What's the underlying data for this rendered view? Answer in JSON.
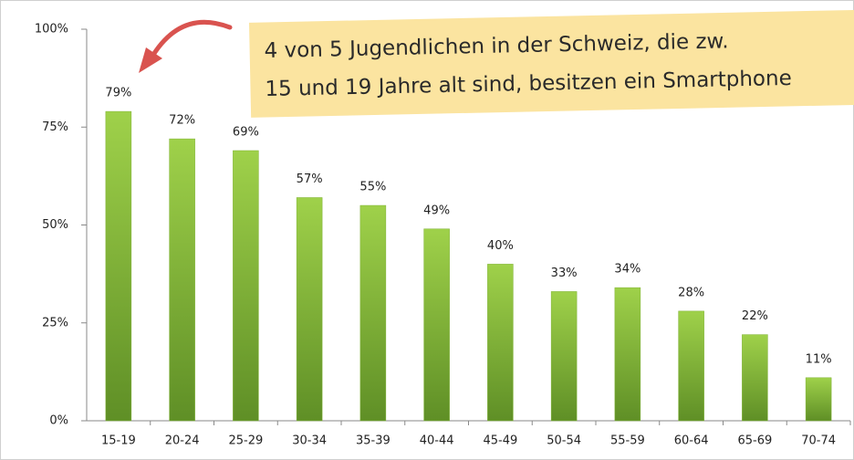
{
  "chart_data": {
    "type": "bar",
    "annotation": [
      "4 von 5 Jugendlichen in der Schweiz, die zw.",
      "15 und 19 Jahre alt sind, besitzen ein Smartphone"
    ],
    "categories": [
      "15-19",
      "20-24",
      "25-29",
      "30-34",
      "35-39",
      "40-44",
      "45-49",
      "50-54",
      "55-59",
      "60-64",
      "65-69",
      "70-74"
    ],
    "values": [
      79,
      72,
      69,
      57,
      55,
      49,
      40,
      33,
      34,
      28,
      22,
      11
    ],
    "value_labels": [
      "79%",
      "72%",
      "69%",
      "57%",
      "55%",
      "49%",
      "40%",
      "33%",
      "34%",
      "28%",
      "22%",
      "11%"
    ],
    "color": "#7fb234",
    "ylim": [
      0,
      100
    ],
    "yticks": [
      {
        "value": 0,
        "label": "0%"
      },
      {
        "value": 25,
        "label": "25%"
      },
      {
        "value": 50,
        "label": "50%"
      },
      {
        "value": 75,
        "label": "75%"
      },
      {
        "value": 100,
        "label": "100%"
      }
    ],
    "grid": false
  }
}
